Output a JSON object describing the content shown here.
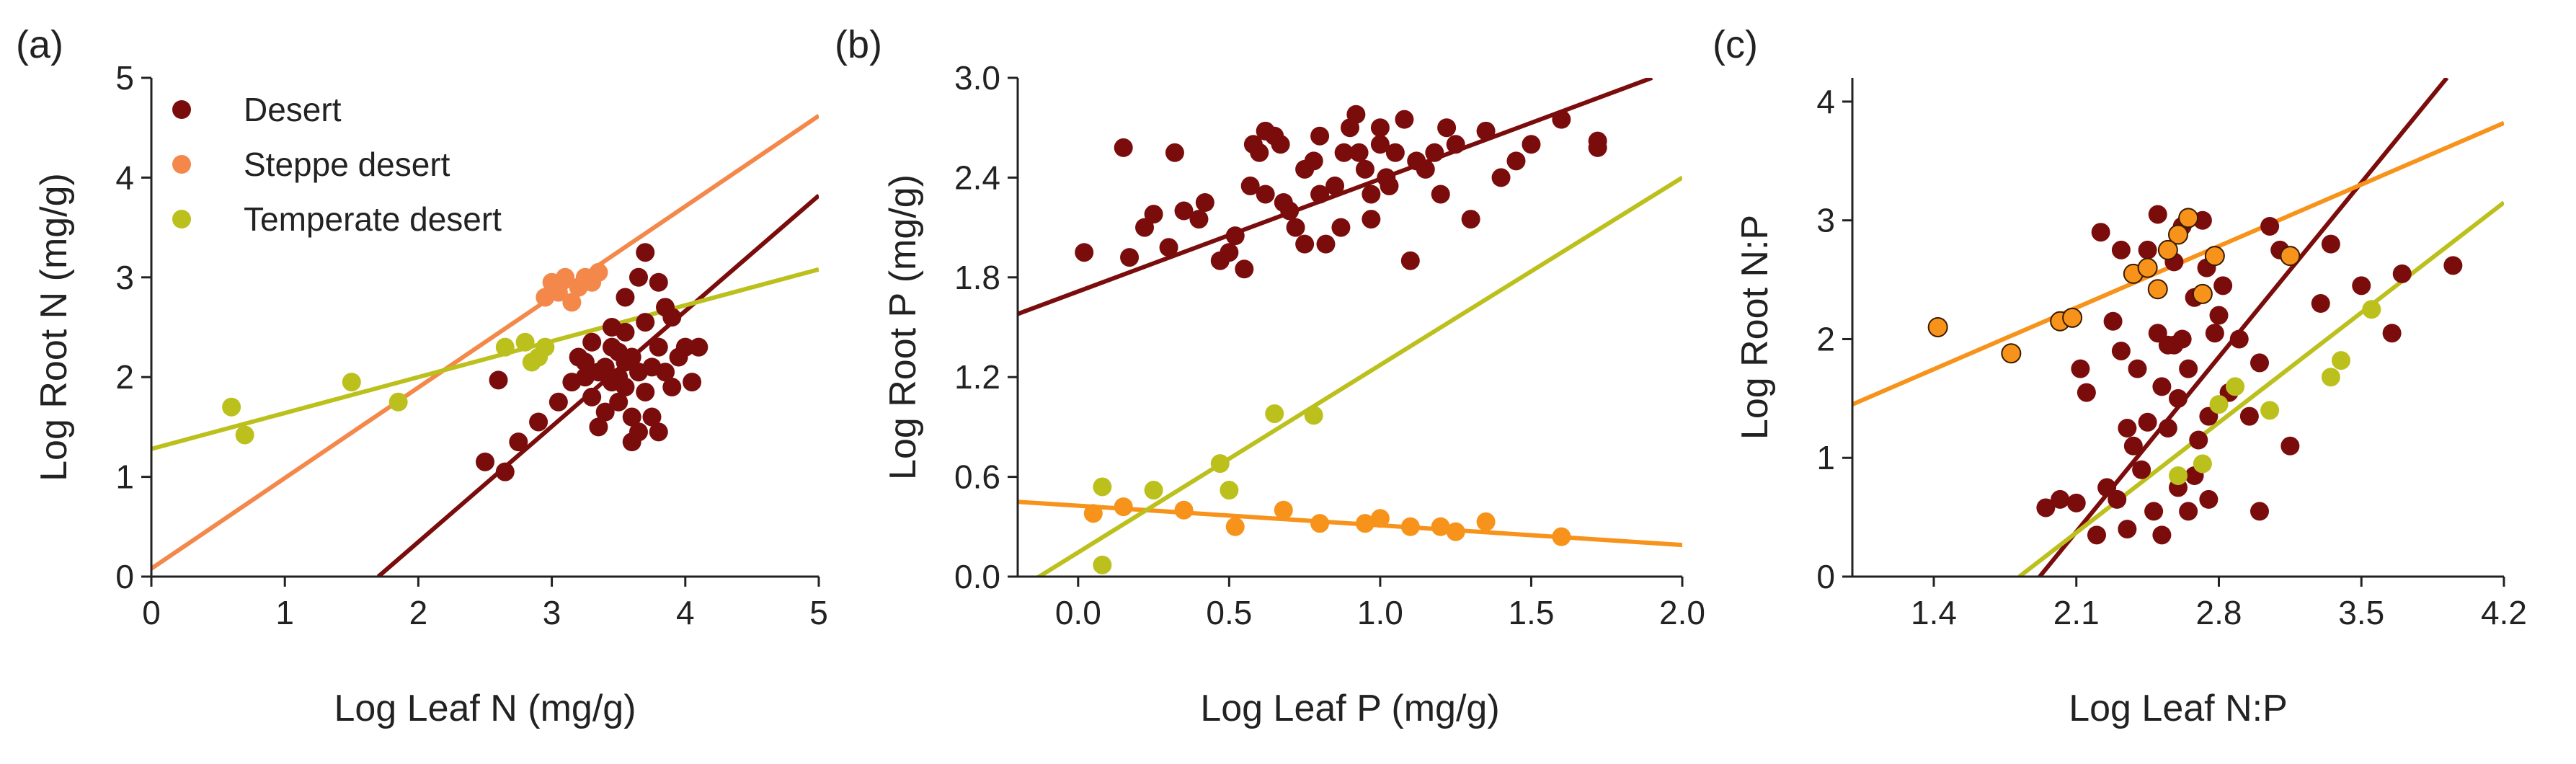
{
  "colors": {
    "desert": "#7b0c0c",
    "steppe": "#f4884a",
    "temperate": "#bcc01d",
    "fit_steppe_c": "#f7931a",
    "axis": "#222222"
  },
  "legend": {
    "desert": "Desert",
    "steppe": "Steppe desert",
    "temperate": "Temperate desert"
  },
  "chart_data": [
    {
      "panel": "(a)",
      "type": "scatter",
      "xlabel": "Log Leaf N (mg/g)",
      "ylabel": "Log Root N (mg/g)",
      "xlim": [
        0,
        5
      ],
      "ylim": [
        0,
        5
      ],
      "xticks": [
        "0",
        "1",
        "2",
        "3",
        "4",
        "5"
      ],
      "yticks": [
        "0",
        "1",
        "2",
        "3",
        "4",
        "5"
      ],
      "legend_position": "top-left",
      "series": [
        {
          "name": "Desert",
          "color": "#7b0c0c",
          "points": [
            [
              2.5,
              1.15
            ],
            [
              2.65,
              1.05
            ],
            [
              2.75,
              1.35
            ],
            [
              2.6,
              1.97
            ],
            [
              2.9,
              1.55
            ],
            [
              3.05,
              1.75
            ],
            [
              3.2,
              2.2
            ],
            [
              3.25,
              2.0
            ],
            [
              3.3,
              1.8
            ],
            [
              3.35,
              1.5
            ],
            [
              3.4,
              2.1
            ],
            [
              3.45,
              2.3
            ],
            [
              3.5,
              2.0
            ],
            [
              3.5,
              1.75
            ],
            [
              3.55,
              2.45
            ],
            [
              3.6,
              2.2
            ],
            [
              3.6,
              1.35
            ],
            [
              3.65,
              2.05
            ],
            [
              3.7,
              1.85
            ],
            [
              3.7,
              2.55
            ],
            [
              3.75,
              2.1
            ],
            [
              3.8,
              2.3
            ],
            [
              3.8,
              1.45
            ],
            [
              3.85,
              2.7
            ],
            [
              3.9,
              1.9
            ],
            [
              3.95,
              2.2
            ],
            [
              4.0,
              2.3
            ],
            [
              4.1,
              2.3
            ],
            [
              3.7,
              3.25
            ],
            [
              3.65,
              3.0
            ],
            [
              3.55,
              2.8
            ],
            [
              3.4,
              1.65
            ],
            [
              3.3,
              2.35
            ],
            [
              3.15,
              1.95
            ],
            [
              3.35,
              2.05
            ],
            [
              3.45,
              1.95
            ],
            [
              3.55,
              2.15
            ],
            [
              3.6,
              1.6
            ],
            [
              3.8,
              2.95
            ],
            [
              3.9,
              2.6
            ],
            [
              3.85,
              2.05
            ],
            [
              3.25,
              2.15
            ],
            [
              3.75,
              1.6
            ],
            [
              3.65,
              1.45
            ],
            [
              3.55,
              1.9
            ],
            [
              3.45,
              2.5
            ],
            [
              3.5,
              2.25
            ],
            [
              4.05,
              1.95
            ]
          ]
        },
        {
          "name": "Steppe desert",
          "color": "#f4884a",
          "points": [
            [
              2.95,
              2.8
            ],
            [
              3.0,
              2.95
            ],
            [
              3.05,
              2.85
            ],
            [
              3.1,
              3.0
            ],
            [
              3.2,
              2.9
            ],
            [
              3.3,
              2.95
            ],
            [
              3.15,
              2.75
            ],
            [
              3.35,
              3.05
            ],
            [
              3.25,
              3.0
            ]
          ]
        },
        {
          "name": "Temperate desert",
          "color": "#bcc01d",
          "points": [
            [
              0.6,
              1.7
            ],
            [
              0.7,
              1.42
            ],
            [
              1.5,
              1.95
            ],
            [
              1.85,
              1.75
            ],
            [
              2.65,
              2.3
            ],
            [
              2.8,
              2.35
            ],
            [
              2.9,
              2.2
            ],
            [
              2.95,
              2.3
            ],
            [
              2.85,
              2.15
            ]
          ]
        }
      ],
      "fit_lines": [
        {
          "series": "Desert",
          "color": "#7b0c0c",
          "x": [
            1.7,
            5.0
          ],
          "y": [
            0.0,
            3.82
          ]
        },
        {
          "series": "Steppe desert",
          "color": "#f4884a",
          "x": [
            0.0,
            5.0
          ],
          "y": [
            0.08,
            4.62
          ]
        },
        {
          "series": "Temperate desert",
          "color": "#bcc01d",
          "x": [
            0.0,
            5.0
          ],
          "y": [
            1.28,
            3.08
          ]
        }
      ]
    },
    {
      "panel": "(b)",
      "type": "scatter",
      "xlabel": "Log Leaf P (mg/g)",
      "ylabel": "Log Root P (mg/g)",
      "xlim": [
        -0.2,
        2.0
      ],
      "ylim": [
        0.0,
        3.0
      ],
      "xticks": [
        "0.0",
        "0.5",
        "1.0",
        "1.5",
        "2.0"
      ],
      "yticks": [
        "0.0",
        "0.6",
        "1.2",
        "1.8",
        "2.4",
        "3.0"
      ],
      "series": [
        {
          "name": "Desert",
          "color": "#7b0c0c",
          "points": [
            [
              0.02,
              1.95
            ],
            [
              0.15,
              2.58
            ],
            [
              0.17,
              1.92
            ],
            [
              0.22,
              2.1
            ],
            [
              0.25,
              2.18
            ],
            [
              0.3,
              1.98
            ],
            [
              0.32,
              2.55
            ],
            [
              0.35,
              2.2
            ],
            [
              0.4,
              2.15
            ],
            [
              0.42,
              2.25
            ],
            [
              0.47,
              1.9
            ],
            [
              0.5,
              1.95
            ],
            [
              0.52,
              2.05
            ],
            [
              0.55,
              1.85
            ],
            [
              0.57,
              2.35
            ],
            [
              0.6,
              2.55
            ],
            [
              0.62,
              2.3
            ],
            [
              0.65,
              2.65
            ],
            [
              0.67,
              2.6
            ],
            [
              0.7,
              2.2
            ],
            [
              0.72,
              2.1
            ],
            [
              0.75,
              2.45
            ],
            [
              0.78,
              2.5
            ],
            [
              0.8,
              2.65
            ],
            [
              0.82,
              2.0
            ],
            [
              0.85,
              2.35
            ],
            [
              0.88,
              2.55
            ],
            [
              0.9,
              2.7
            ],
            [
              0.92,
              2.78
            ],
            [
              0.95,
              2.45
            ],
            [
              0.97,
              2.3
            ],
            [
              1.0,
              2.6
            ],
            [
              1.02,
              2.4
            ],
            [
              1.05,
              2.55
            ],
            [
              1.08,
              2.75
            ],
            [
              1.1,
              1.9
            ],
            [
              1.12,
              2.5
            ],
            [
              1.15,
              2.45
            ],
            [
              1.2,
              2.3
            ],
            [
              1.25,
              2.6
            ],
            [
              1.3,
              2.15
            ],
            [
              1.35,
              2.68
            ],
            [
              1.4,
              2.4
            ],
            [
              1.45,
              2.5
            ],
            [
              1.5,
              2.6
            ],
            [
              1.6,
              2.75
            ],
            [
              1.72,
              2.62
            ],
            [
              1.72,
              2.58
            ],
            [
              0.68,
              2.25
            ],
            [
              0.58,
              2.6
            ],
            [
              0.75,
              2.0
            ],
            [
              0.87,
              2.1
            ],
            [
              1.0,
              2.7
            ],
            [
              1.18,
              2.55
            ],
            [
              0.62,
              2.68
            ],
            [
              0.93,
              2.55
            ],
            [
              1.03,
              2.35
            ],
            [
              1.22,
              2.7
            ],
            [
              0.8,
              2.3
            ],
            [
              0.97,
              2.15
            ]
          ]
        },
        {
          "name": "Steppe desert",
          "color": "#f7931a",
          "points": [
            [
              0.05,
              0.38
            ],
            [
              0.15,
              0.42
            ],
            [
              0.35,
              0.4
            ],
            [
              0.52,
              0.3
            ],
            [
              0.68,
              0.4
            ],
            [
              0.8,
              0.32
            ],
            [
              0.95,
              0.32
            ],
            [
              1.0,
              0.35
            ],
            [
              1.1,
              0.3
            ],
            [
              1.2,
              0.3
            ],
            [
              1.25,
              0.27
            ],
            [
              1.35,
              0.33
            ],
            [
              1.6,
              0.24
            ]
          ]
        },
        {
          "name": "Temperate desert",
          "color": "#bcc01d",
          "points": [
            [
              0.08,
              0.54
            ],
            [
              0.08,
              0.07
            ],
            [
              0.25,
              0.52
            ],
            [
              0.47,
              0.68
            ],
            [
              0.5,
              0.52
            ],
            [
              0.65,
              0.98
            ],
            [
              0.78,
              0.97
            ]
          ]
        }
      ],
      "fit_lines": [
        {
          "series": "Desert",
          "color": "#7b0c0c",
          "x": [
            -0.2,
            1.9
          ],
          "y": [
            1.58,
            3.0
          ]
        },
        {
          "series": "Steppe desert",
          "color": "#f7931a",
          "x": [
            -0.2,
            2.0
          ],
          "y": [
            0.45,
            0.19
          ]
        },
        {
          "series": "Temperate desert",
          "color": "#bcc01d",
          "x": [
            -0.2,
            2.0
          ],
          "y": [
            -0.08,
            2.4
          ]
        }
      ]
    },
    {
      "panel": "(c)",
      "type": "scatter",
      "xlabel": "Log Leaf N:P",
      "ylabel": "Log Root N:P",
      "xlim": [
        1.0,
        4.2
      ],
      "ylim": [
        0,
        4.2
      ],
      "xticks": [
        "1.4",
        "2.1",
        "2.8",
        "3.5",
        "4.2"
      ],
      "yticks": [
        "0",
        "1",
        "2",
        "3",
        "4"
      ],
      "series": [
        {
          "name": "Desert",
          "color": "#7b0c0c",
          "points": [
            [
              1.95,
              0.58
            ],
            [
              2.02,
              0.65
            ],
            [
              2.1,
              0.62
            ],
            [
              2.15,
              1.55
            ],
            [
              2.2,
              0.35
            ],
            [
              2.22,
              2.9
            ],
            [
              2.25,
              0.75
            ],
            [
              2.28,
              2.15
            ],
            [
              2.3,
              0.65
            ],
            [
              2.32,
              1.9
            ],
            [
              2.35,
              1.25
            ],
            [
              2.35,
              0.4
            ],
            [
              2.38,
              2.55
            ],
            [
              2.4,
              1.75
            ],
            [
              2.42,
              0.9
            ],
            [
              2.45,
              2.75
            ],
            [
              2.45,
              1.3
            ],
            [
              2.48,
              0.55
            ],
            [
              2.5,
              2.05
            ],
            [
              2.5,
              3.05
            ],
            [
              2.52,
              0.35
            ],
            [
              2.55,
              1.95
            ],
            [
              2.55,
              1.25
            ],
            [
              2.58,
              2.65
            ],
            [
              2.6,
              0.75
            ],
            [
              2.6,
              1.5
            ],
            [
              2.62,
              2.0
            ],
            [
              2.65,
              1.75
            ],
            [
              2.65,
              0.55
            ],
            [
              2.68,
              2.35
            ],
            [
              2.7,
              1.15
            ],
            [
              2.72,
              3.0
            ],
            [
              2.75,
              0.65
            ],
            [
              2.75,
              1.35
            ],
            [
              2.78,
              2.05
            ],
            [
              2.8,
              2.2
            ],
            [
              2.85,
              1.55
            ],
            [
              2.9,
              2.0
            ],
            [
              2.95,
              1.35
            ],
            [
              3.0,
              0.55
            ],
            [
              3.05,
              2.95
            ],
            [
              3.1,
              2.75
            ],
            [
              3.15,
              1.1
            ],
            [
              3.3,
              2.3
            ],
            [
              3.35,
              2.8
            ],
            [
              3.5,
              2.45
            ],
            [
              3.65,
              2.05
            ],
            [
              3.7,
              2.55
            ],
            [
              3.95,
              2.62
            ],
            [
              2.12,
              1.75
            ],
            [
              2.38,
              1.1
            ],
            [
              2.58,
              1.95
            ],
            [
              2.68,
              0.85
            ],
            [
              2.82,
              2.45
            ],
            [
              3.0,
              1.8
            ],
            [
              2.32,
              2.75
            ],
            [
              2.52,
              1.6
            ],
            [
              2.62,
              2.95
            ],
            [
              2.74,
              2.6
            ]
          ]
        },
        {
          "name": "Steppe desert",
          "color": "#f7931a",
          "points": [
            [
              1.42,
              2.1
            ],
            [
              1.78,
              1.88
            ],
            [
              2.02,
              2.15
            ],
            [
              2.08,
              2.18
            ],
            [
              2.38,
              2.55
            ],
            [
              2.45,
              2.6
            ],
            [
              2.5,
              2.42
            ],
            [
              2.6,
              2.88
            ],
            [
              2.65,
              3.02
            ],
            [
              2.72,
              2.38
            ],
            [
              2.78,
              2.7
            ],
            [
              3.15,
              2.7
            ],
            [
              2.55,
              2.75
            ]
          ]
        },
        {
          "name": "Temperate desert",
          "color": "#bcc01d",
          "points": [
            [
              2.6,
              0.85
            ],
            [
              2.72,
              0.95
            ],
            [
              2.8,
              1.45
            ],
            [
              2.88,
              1.6
            ],
            [
              3.05,
              1.4
            ],
            [
              3.4,
              1.82
            ],
            [
              3.55,
              2.25
            ],
            [
              3.35,
              1.68
            ]
          ]
        }
      ],
      "fit_lines": [
        {
          "series": "Desert",
          "color": "#7b0c0c",
          "x": [
            1.92,
            3.92
          ],
          "y": [
            0.0,
            4.2
          ]
        },
        {
          "series": "Steppe desert",
          "color": "#f7931a",
          "x": [
            1.0,
            4.2
          ],
          "y": [
            1.45,
            3.82
          ]
        },
        {
          "series": "Temperate desert",
          "color": "#bcc01d",
          "x": [
            1.82,
            4.2
          ],
          "y": [
            0.0,
            3.15
          ]
        }
      ]
    }
  ]
}
